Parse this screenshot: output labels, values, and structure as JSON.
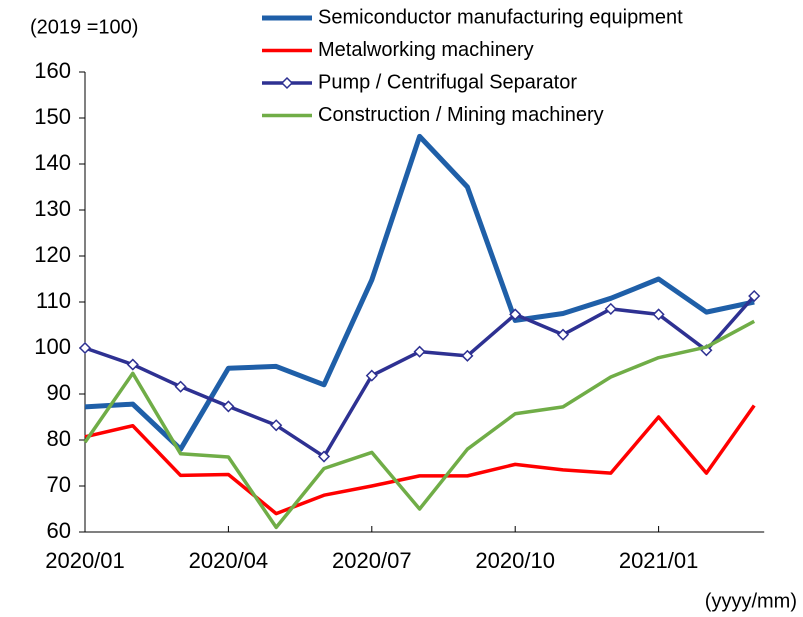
{
  "chart_data": {
    "type": "line",
    "y_unit_label": "(2019 =100)",
    "x_unit_label": "(yyyy/mm)",
    "categories": [
      "2020/01",
      null,
      null,
      "2020/04",
      null,
      null,
      "2020/07",
      null,
      null,
      "2020/10",
      null,
      null,
      "2021/01",
      null,
      null
    ],
    "ylim": [
      60,
      160
    ],
    "yticks": [
      60,
      70,
      80,
      90,
      100,
      110,
      120,
      130,
      140,
      150,
      160
    ],
    "series": [
      {
        "name": "Semiconductor manufacturing equipment",
        "color": "#1f5fa8",
        "width": 5,
        "values": [
          87.2,
          87.8,
          78,
          95.6,
          96,
          92,
          114.8,
          146,
          135,
          106,
          107.5,
          110.8,
          115,
          107.8,
          110
        ]
      },
      {
        "name": "Metalworking machinery",
        "color": "#ff0000",
        "width": 3.5,
        "values": [
          80.7,
          83.1,
          72.3,
          72.5,
          64,
          68,
          70,
          72.2,
          72.2,
          74.7,
          73.5,
          72.8,
          85,
          72.8,
          87.5
        ]
      },
      {
        "name": "Pump / Centrifugal Separator",
        "color": "#2e3192",
        "width": 3.5,
        "marker": "diamond",
        "values": [
          100,
          96.4,
          91.6,
          87.3,
          83.2,
          76.4,
          94,
          99.2,
          98.3,
          107.3,
          102.9,
          108.5,
          107.3,
          99.5,
          111.3
        ]
      },
      {
        "name": "Construction / Mining machinery",
        "color": "#70ad47",
        "width": 3.5,
        "values": [
          79.5,
          94.5,
          77,
          76.3,
          61,
          73.8,
          77.3,
          65,
          78,
          85.7,
          87.2,
          93.7,
          97.9,
          100.2,
          105.8
        ]
      }
    ]
  }
}
